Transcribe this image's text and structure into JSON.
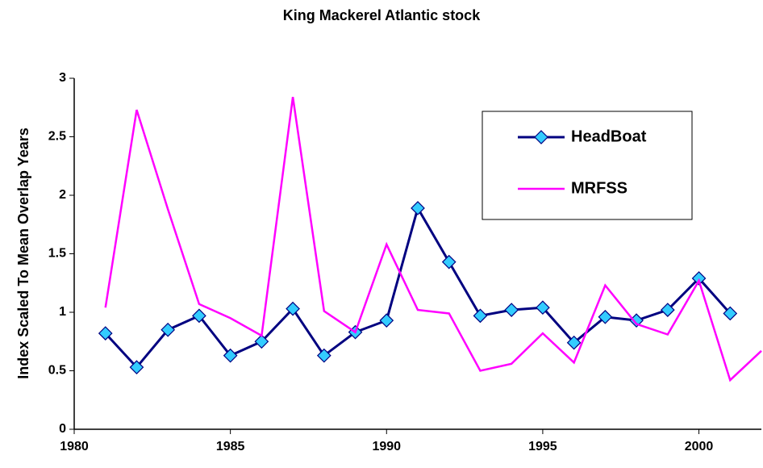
{
  "chart_data": {
    "type": "line",
    "title": "King Mackerel Atlantic stock",
    "y_label": "Index Scaled To Mean Overlap Years",
    "x": [
      1981,
      1982,
      1983,
      1984,
      1985,
      1986,
      1987,
      1988,
      1989,
      1990,
      1991,
      1992,
      1993,
      1994,
      1995,
      1996,
      1997,
      1998,
      1999,
      2000,
      2001,
      2002
    ],
    "series": [
      {
        "name": "HeadBoat",
        "color": "#000080",
        "marker_color": "#33ccff",
        "marker": "diamond",
        "values": [
          0.82,
          0.53,
          0.85,
          0.97,
          0.63,
          0.75,
          1.03,
          0.63,
          0.83,
          0.93,
          1.89,
          1.43,
          0.97,
          1.02,
          1.04,
          0.74,
          0.96,
          0.93,
          1.02,
          1.29,
          0.99,
          null
        ]
      },
      {
        "name": "MRFSS",
        "color": "#ff00ff",
        "marker": "none",
        "values": [
          1.04,
          2.73,
          1.88,
          1.07,
          0.95,
          0.8,
          2.84,
          1.01,
          0.83,
          1.58,
          1.02,
          0.99,
          0.5,
          0.56,
          0.82,
          0.57,
          1.23,
          0.9,
          0.81,
          1.27,
          0.42,
          0.67
        ]
      }
    ],
    "xlim": [
      1980,
      2002
    ],
    "xticks": [
      1980,
      1985,
      1990,
      1995,
      2000
    ],
    "ylim": [
      0,
      3
    ],
    "yticks": [
      0,
      0.5,
      1,
      1.5,
      2,
      2.5,
      3
    ],
    "grid": false,
    "legend": "upper-right"
  }
}
